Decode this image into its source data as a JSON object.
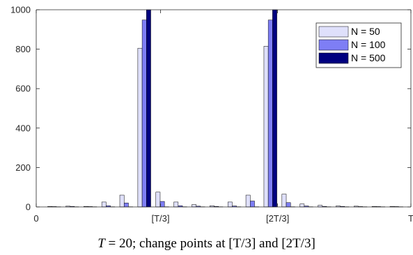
{
  "chart_data": {
    "type": "bar",
    "x": [
      1,
      2,
      3,
      4,
      5,
      6,
      7,
      8,
      9,
      10,
      11,
      12,
      13,
      14,
      15,
      16,
      17,
      18,
      19,
      20
    ],
    "xlim": [
      0,
      20.8
    ],
    "ylim": [
      0,
      1000
    ],
    "yticks": [
      0,
      200,
      400,
      600,
      800,
      1000
    ],
    "xticks": [
      {
        "x": 0,
        "label": "0"
      },
      {
        "x": 6.9,
        "label": "[T/3]"
      },
      {
        "x": 13.4,
        "label": "[2T/3]"
      },
      {
        "x": 20.8,
        "label": "T"
      }
    ],
    "grid": false,
    "legend_position": "top-right",
    "series": [
      {
        "name": "N = 50",
        "color": "#dfe0fb",
        "values": [
          3,
          4,
          3,
          25,
          60,
          805,
          75,
          25,
          12,
          6,
          25,
          60,
          815,
          65,
          15,
          8,
          5,
          4,
          3,
          3
        ]
      },
      {
        "name": "N = 100",
        "color": "#7e7ef5",
        "values": [
          2,
          3,
          2,
          6,
          20,
          948,
          28,
          6,
          4,
          3,
          5,
          30,
          948,
          22,
          5,
          3,
          3,
          2,
          2,
          2
        ]
      },
      {
        "name": "N = 500",
        "color": "#00007f",
        "values": [
          1,
          1,
          1,
          1,
          1,
          1000,
          1,
          1,
          1,
          1,
          1,
          1,
          1000,
          1,
          1,
          1,
          1,
          1,
          1,
          1
        ]
      }
    ]
  },
  "caption": {
    "math": "T",
    "rest": " = 20; change points at [T/3] and [2T/3]"
  }
}
